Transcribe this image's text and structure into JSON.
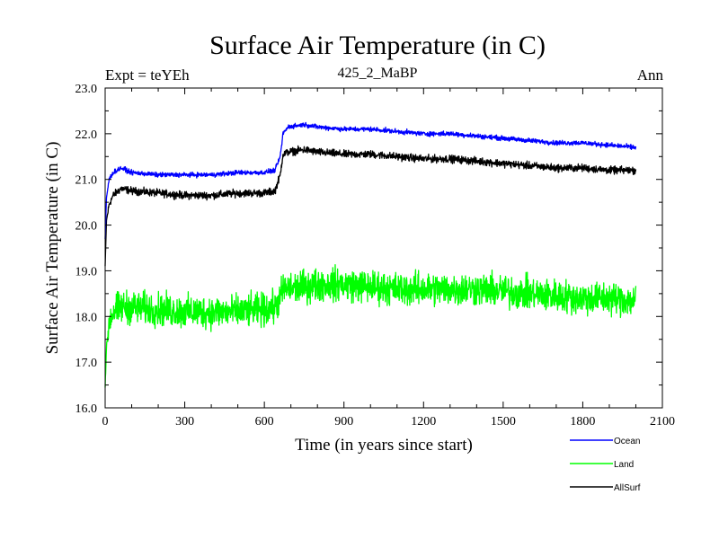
{
  "chart_data": {
    "type": "line",
    "title": "Surface Air Temperature (in C)",
    "subtitle_left": "Expt = teYEh",
    "subtitle_center": "425_2_MaBP",
    "subtitle_right": "Ann",
    "xlabel": "Time (in years since start)",
    "ylabel": "Surface Air Temperature (in C)",
    "xlim": [
      0,
      2100
    ],
    "ylim": [
      16.0,
      23.0
    ],
    "xticks": [
      0,
      300,
      600,
      900,
      1200,
      1500,
      1800,
      2100
    ],
    "xtick_labels": [
      "0",
      "300",
      "600",
      "900",
      "1200",
      "1500",
      "1800",
      "2100"
    ],
    "yticks": [
      16.0,
      17.0,
      18.0,
      19.0,
      20.0,
      21.0,
      22.0,
      23.0
    ],
    "ytick_labels": [
      "16.0",
      "17.0",
      "18.0",
      "19.0",
      "20.0",
      "21.0",
      "22.0",
      "23.0"
    ],
    "grid": false,
    "legend_position": "bottom-right, below plot",
    "series": [
      {
        "name": "Ocean",
        "color": "#0000ff",
        "x": [
          0,
          5,
          15,
          30,
          60,
          100,
          200,
          300,
          400,
          500,
          600,
          640,
          660,
          670,
          690,
          750,
          800,
          900,
          1000,
          1100,
          1200,
          1300,
          1400,
          1500,
          1600,
          1700,
          1800,
          1900,
          2000
        ],
        "values": [
          19.7,
          20.6,
          21.0,
          21.15,
          21.25,
          21.15,
          21.1,
          21.1,
          21.1,
          21.15,
          21.15,
          21.2,
          21.5,
          22.0,
          22.15,
          22.2,
          22.15,
          22.1,
          22.1,
          22.05,
          22.0,
          22.0,
          21.95,
          21.9,
          21.85,
          21.8,
          21.8,
          21.75,
          21.7
        ],
        "noise": 0.05
      },
      {
        "name": "Land",
        "color": "#00ff00",
        "x": [
          0,
          5,
          15,
          30,
          60,
          100,
          200,
          300,
          400,
          500,
          600,
          640,
          660,
          670,
          690,
          750,
          800,
          900,
          1000,
          1100,
          1200,
          1300,
          1400,
          1500,
          1600,
          1700,
          1800,
          1900,
          2000
        ],
        "values": [
          16.5,
          17.3,
          17.9,
          18.1,
          18.2,
          18.2,
          18.15,
          18.1,
          18.1,
          18.1,
          18.15,
          18.2,
          18.4,
          18.6,
          18.6,
          18.65,
          18.7,
          18.7,
          18.65,
          18.6,
          18.6,
          18.6,
          18.6,
          18.55,
          18.5,
          18.45,
          18.4,
          18.4,
          18.35
        ],
        "noise": 0.35
      },
      {
        "name": "AllSurf",
        "color": "#000000",
        "x": [
          0,
          5,
          15,
          30,
          60,
          100,
          200,
          300,
          400,
          500,
          600,
          640,
          660,
          670,
          690,
          750,
          800,
          900,
          1000,
          1100,
          1200,
          1300,
          1400,
          1500,
          1600,
          1700,
          1800,
          1900,
          2000
        ],
        "values": [
          19.1,
          20.1,
          20.45,
          20.65,
          20.8,
          20.75,
          20.7,
          20.65,
          20.65,
          20.7,
          20.7,
          20.75,
          21.1,
          21.55,
          21.6,
          21.65,
          21.6,
          21.55,
          21.55,
          21.5,
          21.45,
          21.45,
          21.4,
          21.35,
          21.3,
          21.25,
          21.25,
          21.2,
          21.2
        ],
        "noise": 0.08
      }
    ]
  }
}
